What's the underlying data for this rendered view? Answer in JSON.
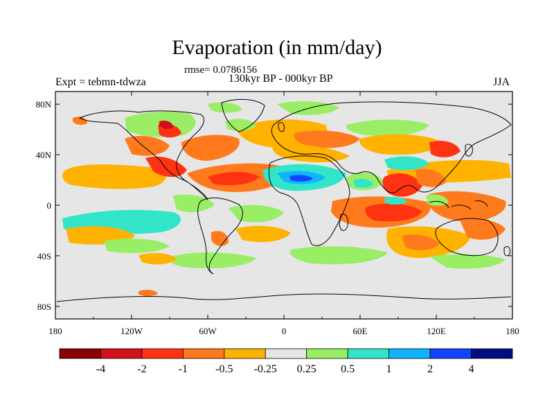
{
  "figure": {
    "title": "Evaporation (in mm/day)",
    "rmse_text": "rmse= 0.0786156",
    "period": "130kyr BP - 000kyr BP",
    "experiment": "Expt = tebmn-tdwza",
    "season": "JJA"
  },
  "axes": {
    "x_ticks": [
      "180",
      "120W",
      "60W",
      "0",
      "60E",
      "120E",
      "180"
    ],
    "y_ticks": [
      "80N",
      "40N",
      "0",
      "40S",
      "80S"
    ]
  },
  "colorbar": {
    "labels": [
      "-4",
      "-2",
      "-1",
      "-0.5",
      "-0.25",
      "0.25",
      "0.5",
      "1",
      "2",
      "4"
    ],
    "colors": [
      "#8b0000",
      "#d0101a",
      "#ff3311",
      "#ff7a1c",
      "#ffb300",
      "#e6e6e6",
      "#99ee66",
      "#33e5c8",
      "#11b3ff",
      "#1144ff",
      "#000c80"
    ]
  },
  "colors": {
    "background_map": "#e6e6e6",
    "coastline": "#000000"
  },
  "regions": [
    {
      "name": "western-indian-ocean-negative",
      "fill": "#ff7a1c"
    },
    {
      "name": "bay-of-bengal-negative",
      "fill": "#ff3311"
    },
    {
      "name": "maritime-continent-negative",
      "fill": "#ff7a1c"
    },
    {
      "name": "south-indian-ocean-negative",
      "fill": "#ffb300"
    },
    {
      "name": "tropical-north-atlantic-negative",
      "fill": "#ff7a1c"
    },
    {
      "name": "gulf-stream-negative",
      "fill": "#ff3311"
    },
    {
      "name": "north-pacific-negative",
      "fill": "#ffb300"
    },
    {
      "name": "tropical-atlantic-positive",
      "fill": "#33e5c8"
    },
    {
      "name": "sahel-positive",
      "fill": "#11b3ff"
    },
    {
      "name": "arabian-sea-positive",
      "fill": "#99ee66"
    },
    {
      "name": "southern-ocean-positive",
      "fill": "#99ee66"
    },
    {
      "name": "south-pacific-positive",
      "fill": "#33e5c8"
    },
    {
      "name": "north-america-positive",
      "fill": "#99ee66"
    },
    {
      "name": "siberia-positive",
      "fill": "#99ee66"
    }
  ]
}
